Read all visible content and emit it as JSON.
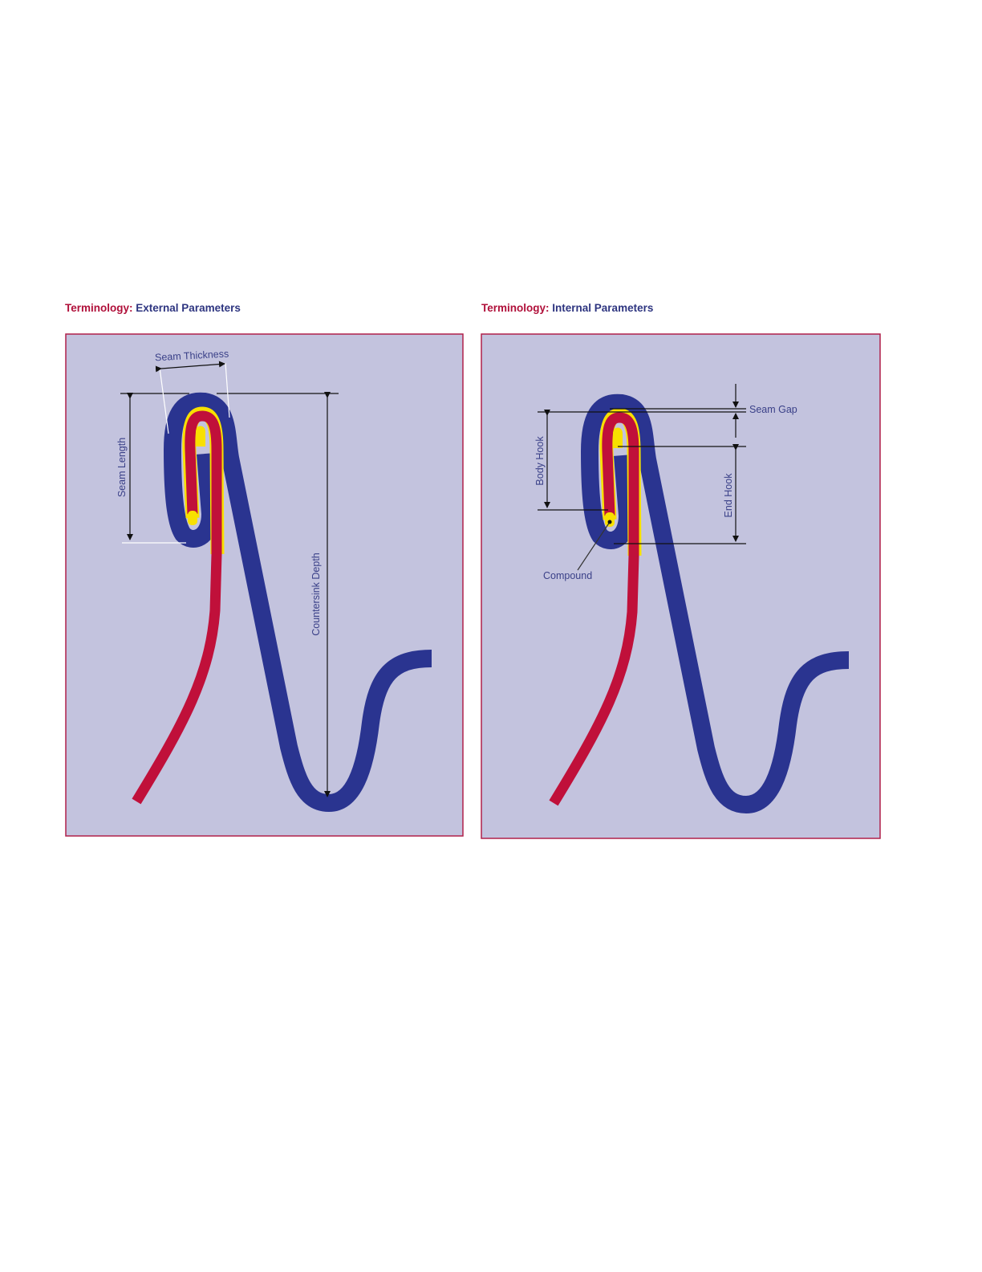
{
  "colors": {
    "panel_background": "#c3c3de",
    "panel_border": "#b0204a",
    "end_metal": "#2a3490",
    "body_metal": "#c0103a",
    "compound": "#f8e000",
    "heading_term": "#b0103a",
    "heading_sub": "#2e3580"
  },
  "external": {
    "heading_term": "Terminology:",
    "heading_sub": "External Parameters",
    "labels": {
      "seam_thickness": "Seam Thickness",
      "seam_length": "Seam Length",
      "countersink_depth": "Countersink Depth"
    }
  },
  "internal": {
    "heading_term": "Terminology:",
    "heading_sub": "Internal Parameters",
    "labels": {
      "seam_gap": "Seam Gap",
      "body_hook": "Body Hook",
      "end_hook": "End Hook",
      "compound": "Compound"
    }
  }
}
